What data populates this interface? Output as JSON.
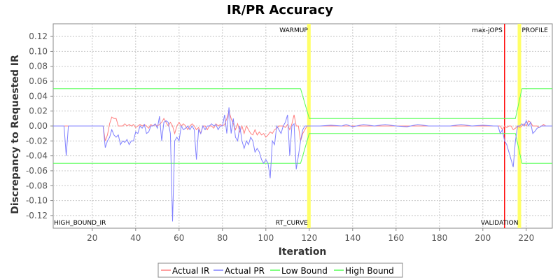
{
  "chart_data": {
    "type": "line",
    "title": "IR/PR Accuracy",
    "xlabel": "Iteration",
    "ylabel": "Discrepancy to Requested IR",
    "xlim": [
      2,
      232
    ],
    "ylim": [
      -0.137,
      0.137
    ],
    "x_ticks": [
      "20",
      "40",
      "60",
      "80",
      "100",
      "120",
      "140",
      "160",
      "180",
      "200",
      "220"
    ],
    "y_ticks": [
      "0.12",
      "0.10",
      "0.08",
      "0.06",
      "0.04",
      "0.02",
      "0.00",
      "-0.02",
      "-0.04",
      "-0.06",
      "-0.08",
      "-0.10",
      "-0.12"
    ],
    "grid": true,
    "legend_position": "bottom",
    "colors": {
      "actual_ir": "#ff8080",
      "actual_pr": "#8080ff",
      "low_bound": "#55ff55",
      "high_bound": "#55ff55",
      "phase_marker": "#ffff66",
      "max_jops_marker": "#ff0000",
      "grid": "#c8c8c8"
    },
    "phase_markers": [
      {
        "label": "WARMUP",
        "x": 120,
        "label_position": "top-left"
      },
      {
        "label": "PROFILE",
        "x": 217,
        "label_position": "top-right"
      },
      {
        "label": "RT_CURVE",
        "x": 120,
        "label_position": "bottom-left"
      },
      {
        "label": "VALIDATION",
        "x": 217,
        "label_position": "bottom-left"
      }
    ],
    "line_markers": [
      {
        "label": "max-jOPS",
        "x": 210,
        "label_position": "top-left"
      }
    ],
    "corner_labels": [
      {
        "label": "HIGH_BOUND_IR",
        "position": "bottom-left"
      }
    ],
    "series": [
      {
        "name": "Actual IR",
        "points": [
          [
            2,
            0
          ],
          [
            25,
            0
          ],
          [
            26,
            -0.02
          ],
          [
            27,
            -0.012
          ],
          [
            28,
            0.003
          ],
          [
            29,
            0.012
          ],
          [
            30,
            0.01
          ],
          [
            31,
            0.01
          ],
          [
            32,
            0
          ],
          [
            33,
            0
          ],
          [
            34,
            0
          ],
          [
            35,
            0.003
          ],
          [
            36,
            0
          ],
          [
            37,
            0.002
          ],
          [
            38,
            0
          ],
          [
            39,
            0.002
          ],
          [
            40,
            -0.002
          ],
          [
            41,
            0
          ],
          [
            42,
            0.002
          ],
          [
            43,
            0
          ],
          [
            44,
            0.002
          ],
          [
            45,
            0
          ],
          [
            46,
            -0.003
          ],
          [
            47,
            0.002
          ],
          [
            48,
            0
          ],
          [
            49,
            0.002
          ],
          [
            50,
            0
          ],
          [
            51,
            0.002
          ],
          [
            52,
            0.005
          ],
          [
            53,
            0.01
          ],
          [
            54,
            0.005
          ],
          [
            55,
            0
          ],
          [
            56,
            0.005
          ],
          [
            57,
            0
          ],
          [
            58,
            -0.01
          ],
          [
            59,
            0
          ],
          [
            60,
            0.005
          ],
          [
            61,
            0
          ],
          [
            62,
            0.003
          ],
          [
            63,
            0
          ],
          [
            64,
            -0.005
          ],
          [
            65,
            0
          ],
          [
            66,
            0.003
          ],
          [
            67,
            0
          ],
          [
            68,
            -0.005
          ],
          [
            69,
            -0.002
          ],
          [
            70,
            -0.01
          ],
          [
            71,
            0
          ],
          [
            72,
            0
          ],
          [
            73,
            -0.005
          ],
          [
            74,
            0
          ],
          [
            75,
            0
          ],
          [
            76,
            -0.003
          ],
          [
            77,
            0.003
          ],
          [
            78,
            0
          ],
          [
            79,
            0.002
          ],
          [
            80,
            0
          ],
          [
            81,
            0.002
          ],
          [
            82,
            0.01
          ],
          [
            83,
            0.02
          ],
          [
            84,
            0.01
          ],
          [
            85,
            0.003
          ],
          [
            86,
            -0.005
          ],
          [
            87,
            0.003
          ],
          [
            88,
            -0.008
          ],
          [
            89,
            0
          ],
          [
            90,
            -0.01
          ],
          [
            91,
            0
          ],
          [
            92,
            -0.005
          ],
          [
            93,
            -0.01
          ],
          [
            94,
            -0.012
          ],
          [
            95,
            -0.005
          ],
          [
            96,
            -0.012
          ],
          [
            97,
            -0.008
          ],
          [
            98,
            -0.012
          ],
          [
            99,
            -0.01
          ],
          [
            100,
            -0.015
          ],
          [
            101,
            -0.012
          ],
          [
            102,
            -0.008
          ],
          [
            103,
            -0.01
          ],
          [
            104,
            -0.005
          ],
          [
            105,
            -0.003
          ],
          [
            106,
            0
          ],
          [
            107,
            0
          ],
          [
            108,
            0
          ],
          [
            109,
            -0.002
          ],
          [
            110,
            0.002
          ],
          [
            111,
            -0.005
          ],
          [
            112,
            0.003
          ],
          [
            113,
            0.015
          ],
          [
            114,
            0
          ],
          [
            115,
            0
          ],
          [
            116,
            -0.02
          ],
          [
            117,
            -0.01
          ],
          [
            118,
            -0.005
          ],
          [
            119,
            0
          ],
          [
            120,
            0
          ],
          [
            208,
            0
          ],
          [
            209,
            -0.005
          ],
          [
            210,
            0
          ],
          [
            211,
            -0.002
          ],
          [
            212,
            0
          ],
          [
            213,
            0
          ],
          [
            214,
            -0.005
          ],
          [
            215,
            -0.003
          ],
          [
            216,
            0
          ],
          [
            217,
            -0.002
          ],
          [
            218,
            0
          ],
          [
            219,
            0.003
          ],
          [
            220,
            0
          ],
          [
            221,
            0.007
          ],
          [
            222,
            0.005
          ],
          [
            223,
            0
          ],
          [
            224,
            0
          ],
          [
            225,
            0
          ],
          [
            226,
            -0.002
          ],
          [
            227,
            0
          ],
          [
            228,
            0.002
          ],
          [
            229,
            0
          ],
          [
            230,
            0
          ],
          [
            232,
            0
          ]
        ]
      },
      {
        "name": "Actual PR",
        "points": [
          [
            2,
            0
          ],
          [
            7,
            0
          ],
          [
            8,
            -0.04
          ],
          [
            9,
            0
          ],
          [
            25,
            0
          ],
          [
            26,
            -0.029
          ],
          [
            27,
            -0.02
          ],
          [
            28,
            -0.015
          ],
          [
            29,
            -0.005
          ],
          [
            30,
            -0.012
          ],
          [
            31,
            -0.015
          ],
          [
            32,
            -0.012
          ],
          [
            33,
            -0.025
          ],
          [
            34,
            -0.02
          ],
          [
            35,
            -0.022
          ],
          [
            36,
            -0.018
          ],
          [
            37,
            -0.025
          ],
          [
            38,
            -0.02
          ],
          [
            39,
            -0.02
          ],
          [
            40,
            -0.008
          ],
          [
            41,
            -0.01
          ],
          [
            42,
            0
          ],
          [
            43,
            -0.003
          ],
          [
            44,
            0.002
          ],
          [
            45,
            -0.01
          ],
          [
            46,
            -0.008
          ],
          [
            47,
            0
          ],
          [
            48,
            0
          ],
          [
            49,
            0.003
          ],
          [
            50,
            -0.003
          ],
          [
            51,
            0.013
          ],
          [
            52,
            -0.02
          ],
          [
            53,
            0.005
          ],
          [
            54,
            0.007
          ],
          [
            55,
            0.005
          ],
          [
            56,
            -0.01
          ],
          [
            57,
            -0.128
          ],
          [
            58,
            -0.02
          ],
          [
            59,
            -0.015
          ],
          [
            60,
            -0.02
          ],
          [
            61,
            0
          ],
          [
            62,
            -0.005
          ],
          [
            63,
            -0.003
          ],
          [
            64,
            0
          ],
          [
            65,
            -0.005
          ],
          [
            66,
            0
          ],
          [
            67,
            -0.005
          ],
          [
            68,
            -0.045
          ],
          [
            69,
            -0.005
          ],
          [
            70,
            -0.01
          ],
          [
            71,
            0
          ],
          [
            72,
            -0.005
          ],
          [
            73,
            0
          ],
          [
            74,
            0
          ],
          [
            75,
            0.003
          ],
          [
            76,
            0
          ],
          [
            77,
            0.002
          ],
          [
            78,
            -0.005
          ],
          [
            79,
            0
          ],
          [
            80,
            0
          ],
          [
            81,
            0.015
          ],
          [
            82,
            -0.01
          ],
          [
            83,
            0.025
          ],
          [
            84,
            -0.01
          ],
          [
            85,
            0.01
          ],
          [
            86,
            -0.015
          ],
          [
            87,
            -0.02
          ],
          [
            88,
            0
          ],
          [
            89,
            -0.02
          ],
          [
            90,
            -0.03
          ],
          [
            91,
            -0.02
          ],
          [
            92,
            -0.025
          ],
          [
            93,
            -0.015
          ],
          [
            94,
            -0.02
          ],
          [
            95,
            -0.035
          ],
          [
            96,
            -0.03
          ],
          [
            97,
            -0.035
          ],
          [
            98,
            -0.045
          ],
          [
            99,
            -0.05
          ],
          [
            100,
            -0.045
          ],
          [
            101,
            -0.05
          ],
          [
            102,
            -0.07
          ],
          [
            103,
            -0.02
          ],
          [
            104,
            -0.025
          ],
          [
            105,
            0
          ],
          [
            106,
            -0.005
          ],
          [
            107,
            -0.01
          ],
          [
            108,
            0
          ],
          [
            109,
            0.005
          ],
          [
            110,
            0.015
          ],
          [
            111,
            -0.04
          ],
          [
            112,
            0
          ],
          [
            113,
            0.003
          ],
          [
            114,
            -0.058
          ],
          [
            115,
            -0.04
          ],
          [
            116,
            -0.02
          ],
          [
            117,
            -0.005
          ],
          [
            118,
            0
          ],
          [
            119,
            0
          ],
          [
            120,
            0
          ],
          [
            121,
            0
          ],
          [
            125,
            0
          ],
          [
            130,
            0.001
          ],
          [
            135,
            0
          ],
          [
            137,
            0.002
          ],
          [
            140,
            -0.001
          ],
          [
            145,
            0.002
          ],
          [
            150,
            0
          ],
          [
            155,
            0.002
          ],
          [
            160,
            0
          ],
          [
            165,
            -0.001
          ],
          [
            170,
            0.002
          ],
          [
            175,
            0
          ],
          [
            180,
            0
          ],
          [
            185,
            0
          ],
          [
            190,
            0.002
          ],
          [
            195,
            0
          ],
          [
            200,
            0.001
          ],
          [
            205,
            0
          ],
          [
            207,
            0
          ],
          [
            208,
            -0.01
          ],
          [
            209,
            -0.005
          ],
          [
            210,
            -0.02
          ],
          [
            211,
            -0.025
          ],
          [
            212,
            -0.035
          ],
          [
            213,
            -0.045
          ],
          [
            214,
            -0.055
          ],
          [
            215,
            -0.02
          ],
          [
            216,
            0
          ],
          [
            217,
            0
          ],
          [
            218,
            0.003
          ],
          [
            219,
            0
          ],
          [
            220,
            0.007
          ],
          [
            221,
            0
          ],
          [
            222,
            0.005
          ],
          [
            223,
            -0.01
          ],
          [
            224,
            -0.007
          ],
          [
            225,
            -0.003
          ],
          [
            226,
            -0.002
          ],
          [
            227,
            0
          ],
          [
            228,
            0
          ],
          [
            232,
            0
          ]
        ]
      },
      {
        "name": "Low Bound",
        "points": [
          [
            2,
            -0.05
          ],
          [
            116,
            -0.05
          ],
          [
            120,
            -0.01
          ],
          [
            215,
            -0.01
          ],
          [
            218,
            -0.05
          ],
          [
            232,
            -0.05
          ]
        ]
      },
      {
        "name": "High Bound",
        "points": [
          [
            2,
            0.05
          ],
          [
            116,
            0.05
          ],
          [
            120,
            0.01
          ],
          [
            215,
            0.01
          ],
          [
            218,
            0.05
          ],
          [
            232,
            0.05
          ]
        ]
      }
    ]
  }
}
